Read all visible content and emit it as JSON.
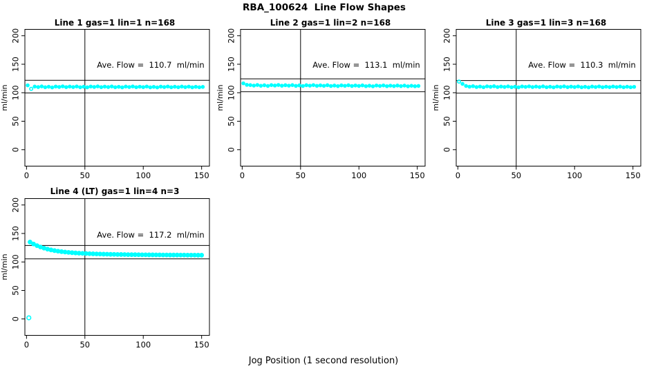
{
  "title": "RBA_100624  Line Flow Shapes",
  "xlabel": "Jog Position (1 second resolution)",
  "colors": {
    "points": "#00ffff",
    "axis": "#000000",
    "background": "#ffffff",
    "text": "#000000"
  },
  "chart_data": [
    {
      "type": "scatter",
      "title": "Line 1 gas=1 lin=1 n=168",
      "ave_flow": 110.7,
      "ave_flow_label": "Ave. Flow =  110.7  ml/min",
      "ylabel": "ml/min",
      "x_ticks": [
        0,
        50,
        100,
        150
      ],
      "y_ticks": [
        0,
        50,
        100,
        150,
        200
      ],
      "xlim": [
        -1.4,
        156.7
      ],
      "ylim": [
        -28.8,
        211.2
      ],
      "vline_x": 50,
      "hlines": [
        121.8,
        99.6
      ],
      "marker_r": 2.2,
      "points": [
        [
          1,
          113
        ],
        [
          4,
          106.8,
          "o"
        ],
        [
          7,
          110.8
        ],
        [
          10,
          109.9
        ],
        [
          13,
          111.1
        ],
        [
          16,
          109.6
        ],
        [
          19,
          110.5
        ],
        [
          22,
          109.3
        ],
        [
          25,
          110.9
        ],
        [
          28,
          110.1
        ],
        [
          31,
          111.2
        ],
        [
          34,
          109.8
        ],
        [
          37,
          110.8
        ],
        [
          40,
          109.9
        ],
        [
          43,
          111
        ],
        [
          46,
          109.6
        ],
        [
          49,
          110.5
        ],
        [
          52,
          109.4
        ],
        [
          55,
          110.9
        ],
        [
          58,
          110.1
        ],
        [
          61,
          111.1
        ],
        [
          64,
          109.8
        ],
        [
          67,
          110.7
        ],
        [
          70,
          109.9
        ],
        [
          73,
          111
        ],
        [
          76,
          109.6
        ],
        [
          79,
          110.4
        ],
        [
          82,
          109.4
        ],
        [
          85,
          110.8
        ],
        [
          88,
          110
        ],
        [
          91,
          111
        ],
        [
          94,
          109.7
        ],
        [
          97,
          110.6
        ],
        [
          100,
          109.8
        ],
        [
          103,
          110.9
        ],
        [
          106,
          109.5
        ],
        [
          109,
          110.3
        ],
        [
          112,
          109.3
        ],
        [
          115,
          110.7
        ],
        [
          118,
          109.9
        ],
        [
          121,
          110.9
        ],
        [
          124,
          109.6
        ],
        [
          127,
          110.5
        ],
        [
          130,
          109.7
        ],
        [
          133,
          110.8
        ],
        [
          136,
          109.8
        ],
        [
          139,
          110.7
        ],
        [
          142,
          109.5
        ],
        [
          145,
          110.4
        ],
        [
          148,
          109.6
        ],
        [
          151,
          110.2
        ]
      ]
    },
    {
      "type": "scatter",
      "title": "Line 2 gas=1 lin=2 n=168",
      "ave_flow": 113.1,
      "ave_flow_label": "Ave. Flow =  113.1  ml/min",
      "ylabel": "ml/min",
      "x_ticks": [
        0,
        50,
        100,
        150
      ],
      "y_ticks": [
        0,
        50,
        100,
        150,
        200
      ],
      "xlim": [
        -1.4,
        156.7
      ],
      "ylim": [
        -28.8,
        211.2
      ],
      "vline_x": 50,
      "hlines": [
        124.4,
        101.8
      ],
      "marker_r": 2.2,
      "points": [
        [
          1,
          116.5
        ],
        [
          4,
          113.8
        ],
        [
          7,
          113.4
        ],
        [
          10,
          112.5
        ],
        [
          13,
          113.6
        ],
        [
          16,
          112.2
        ],
        [
          19,
          113.1
        ],
        [
          22,
          111.9
        ],
        [
          25,
          113.4
        ],
        [
          28,
          112.6
        ],
        [
          31,
          113.6
        ],
        [
          34,
          112.3
        ],
        [
          37,
          113.2
        ],
        [
          40,
          112.4
        ],
        [
          43,
          113.4
        ],
        [
          46,
          112
        ],
        [
          49,
          112.9
        ],
        [
          52,
          111.8
        ],
        [
          55,
          113.2
        ],
        [
          58,
          112.4
        ],
        [
          61,
          113.4
        ],
        [
          64,
          112.1
        ],
        [
          67,
          112.9
        ],
        [
          70,
          112.1
        ],
        [
          73,
          113.2
        ],
        [
          76,
          111.8
        ],
        [
          79,
          112.6
        ],
        [
          82,
          111.6
        ],
        [
          85,
          112.9
        ],
        [
          88,
          112.1
        ],
        [
          91,
          113.1
        ],
        [
          94,
          111.8
        ],
        [
          97,
          112.7
        ],
        [
          100,
          111.9
        ],
        [
          103,
          112.9
        ],
        [
          106,
          111.5
        ],
        [
          109,
          112.3
        ],
        [
          112,
          111.3
        ],
        [
          115,
          112.7
        ],
        [
          118,
          111.9
        ],
        [
          121,
          112.8
        ],
        [
          124,
          111.5
        ],
        [
          127,
          112.4
        ],
        [
          130,
          111.6
        ],
        [
          133,
          112.6
        ],
        [
          136,
          111.6
        ],
        [
          139,
          112.5
        ],
        [
          142,
          111.3
        ],
        [
          145,
          112.2
        ],
        [
          148,
          111.4
        ],
        [
          151,
          111.9
        ]
      ]
    },
    {
      "type": "scatter",
      "title": "Line 3 gas=1 lin=3 n=168",
      "ave_flow": 110.3,
      "ave_flow_label": "Ave. Flow =  110.3  ml/min",
      "ylabel": "ml/min",
      "x_ticks": [
        0,
        50,
        100,
        150
      ],
      "y_ticks": [
        0,
        50,
        100,
        150,
        200
      ],
      "xlim": [
        -1.4,
        156.7
      ],
      "ylim": [
        -28.8,
        211.2
      ],
      "vline_x": 50,
      "hlines": [
        121.3,
        99.3
      ],
      "marker_r": 2.2,
      "points": [
        [
          1,
          119.5,
          "o"
        ],
        [
          4,
          115.5
        ],
        [
          7,
          111.9
        ],
        [
          10,
          110.6
        ],
        [
          13,
          111.5
        ],
        [
          16,
          110
        ],
        [
          19,
          110.9
        ],
        [
          22,
          109.7
        ],
        [
          25,
          111.2
        ],
        [
          28,
          110.4
        ],
        [
          31,
          111.4
        ],
        [
          34,
          110
        ],
        [
          37,
          110.9
        ],
        [
          40,
          110.1
        ],
        [
          43,
          111.1
        ],
        [
          46,
          109.7
        ],
        [
          49,
          110.6
        ],
        [
          52,
          109.5
        ],
        [
          55,
          111
        ],
        [
          58,
          110.2
        ],
        [
          61,
          111.2
        ],
        [
          64,
          109.9
        ],
        [
          67,
          110.8
        ],
        [
          70,
          110
        ],
        [
          73,
          111.1
        ],
        [
          76,
          109.7
        ],
        [
          79,
          110.5
        ],
        [
          82,
          109.5
        ],
        [
          85,
          110.9
        ],
        [
          88,
          110.1
        ],
        [
          91,
          111.1
        ],
        [
          94,
          109.8
        ],
        [
          97,
          110.7
        ],
        [
          100,
          109.9
        ],
        [
          103,
          111
        ],
        [
          106,
          109.6
        ],
        [
          109,
          110.4
        ],
        [
          112,
          109.4
        ],
        [
          115,
          110.8
        ],
        [
          118,
          110
        ],
        [
          121,
          111
        ],
        [
          124,
          109.7
        ],
        [
          127,
          110.6
        ],
        [
          130,
          109.8
        ],
        [
          133,
          110.9
        ],
        [
          136,
          109.9
        ],
        [
          139,
          110.8
        ],
        [
          142,
          109.6
        ],
        [
          145,
          110.5
        ],
        [
          148,
          109.7
        ],
        [
          151,
          110.3
        ]
      ]
    },
    {
      "type": "scatter",
      "title": "Line 4 (LT) gas=1 lin=4 n=3",
      "ave_flow": 117.2,
      "ave_flow_label": "Ave. Flow =  117.2  ml/min",
      "ylabel": "ml/min",
      "x_ticks": [
        0,
        50,
        100,
        150
      ],
      "y_ticks": [
        0,
        50,
        100,
        150,
        200
      ],
      "xlim": [
        -1.4,
        156.7
      ],
      "ylim": [
        -28.8,
        211.2
      ],
      "vline_x": 50,
      "hlines": [
        128.9,
        105.5
      ],
      "marker_r": 2.8,
      "points": [
        [
          2,
          2,
          "o"
        ],
        [
          3,
          135
        ],
        [
          6,
          131.5
        ],
        [
          9,
          128.6
        ],
        [
          12,
          126.2
        ],
        [
          15,
          124.2
        ],
        [
          18,
          122.5
        ],
        [
          21,
          121.1
        ],
        [
          24,
          119.9
        ],
        [
          27,
          118.9
        ],
        [
          30,
          118.1
        ],
        [
          33,
          117.4
        ],
        [
          36,
          116.8
        ],
        [
          39,
          116.3
        ],
        [
          42,
          115.8
        ],
        [
          45,
          115.4
        ],
        [
          48,
          115.1
        ],
        [
          51,
          114.8
        ],
        [
          54,
          114.5
        ],
        [
          57,
          114.3
        ],
        [
          60,
          114.1
        ],
        [
          63,
          113.9
        ],
        [
          66,
          113.7
        ],
        [
          69,
          113.6
        ],
        [
          72,
          113.4
        ],
        [
          75,
          113.3
        ],
        [
          78,
          113.2
        ],
        [
          81,
          113.1
        ],
        [
          84,
          113
        ],
        [
          87,
          112.9
        ],
        [
          90,
          112.8
        ],
        [
          93,
          112.8
        ],
        [
          96,
          112.7
        ],
        [
          99,
          112.6
        ],
        [
          102,
          112.6
        ],
        [
          105,
          112.5
        ],
        [
          108,
          112.5
        ],
        [
          111,
          112.4
        ],
        [
          114,
          112.4
        ],
        [
          117,
          112.3
        ],
        [
          120,
          112.3
        ],
        [
          123,
          112.2
        ],
        [
          126,
          112.2
        ],
        [
          129,
          112.2
        ],
        [
          132,
          112.1
        ],
        [
          135,
          112.1
        ],
        [
          138,
          112
        ],
        [
          141,
          112
        ],
        [
          144,
          112
        ],
        [
          147,
          111.9
        ],
        [
          150,
          111.9
        ]
      ]
    }
  ]
}
